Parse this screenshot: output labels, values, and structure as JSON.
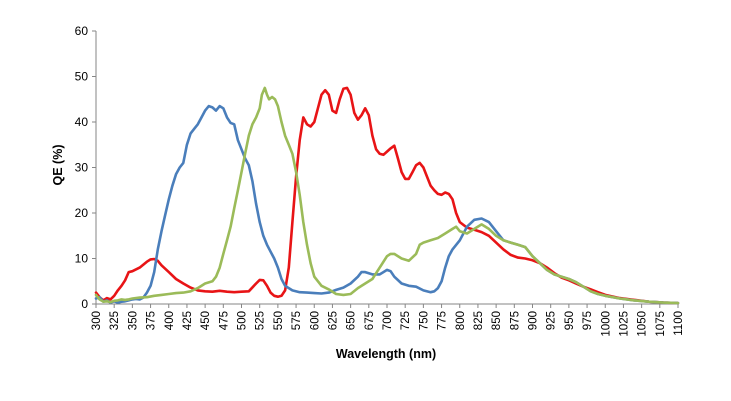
{
  "chart_data": {
    "type": "line",
    "title": "",
    "xlabel": "Wavelength (nm)",
    "ylabel": "QE (%)",
    "xlim": [
      300,
      1100
    ],
    "ylim": [
      0,
      60
    ],
    "grid": false,
    "legend": "none",
    "x_ticks": [
      300,
      325,
      350,
      375,
      400,
      425,
      450,
      475,
      500,
      525,
      550,
      575,
      600,
      625,
      650,
      675,
      700,
      725,
      750,
      775,
      800,
      825,
      850,
      875,
      900,
      925,
      950,
      975,
      1000,
      1025,
      1050,
      1075,
      1100
    ],
    "y_ticks": [
      0,
      10,
      20,
      30,
      40,
      50,
      60
    ],
    "series": [
      {
        "color": "#e81416",
        "points": [
          [
            300,
            2.5
          ],
          [
            305,
            1.5
          ],
          [
            310,
            0.8
          ],
          [
            315,
            1.3
          ],
          [
            320,
            1.0
          ],
          [
            325,
            1.8
          ],
          [
            330,
            3
          ],
          [
            335,
            4
          ],
          [
            340,
            5.2
          ],
          [
            345,
            7
          ],
          [
            350,
            7.2
          ],
          [
            360,
            8
          ],
          [
            370,
            9.3
          ],
          [
            375,
            9.8
          ],
          [
            380,
            9.9
          ],
          [
            385,
            9.5
          ],
          [
            390,
            8.5
          ],
          [
            400,
            7
          ],
          [
            410,
            5.5
          ],
          [
            420,
            4.5
          ],
          [
            430,
            3.6
          ],
          [
            440,
            3
          ],
          [
            450,
            2.8
          ],
          [
            460,
            2.7
          ],
          [
            470,
            2.9
          ],
          [
            480,
            2.7
          ],
          [
            490,
            2.6
          ],
          [
            500,
            2.7
          ],
          [
            510,
            2.8
          ],
          [
            520,
            4.5
          ],
          [
            525,
            5.3
          ],
          [
            530,
            5.2
          ],
          [
            535,
            4
          ],
          [
            540,
            2.5
          ],
          [
            545,
            1.8
          ],
          [
            550,
            1.6
          ],
          [
            555,
            1.8
          ],
          [
            560,
            3
          ],
          [
            565,
            8
          ],
          [
            570,
            18
          ],
          [
            575,
            28
          ],
          [
            580,
            36
          ],
          [
            585,
            41
          ],
          [
            590,
            39.5
          ],
          [
            595,
            39
          ],
          [
            600,
            40
          ],
          [
            605,
            43
          ],
          [
            610,
            46
          ],
          [
            615,
            47
          ],
          [
            620,
            46
          ],
          [
            625,
            42.5
          ],
          [
            630,
            42
          ],
          [
            635,
            45
          ],
          [
            640,
            47.3
          ],
          [
            645,
            47.5
          ],
          [
            650,
            46
          ],
          [
            655,
            42
          ],
          [
            660,
            40.5
          ],
          [
            665,
            41.5
          ],
          [
            670,
            43
          ],
          [
            675,
            41.5
          ],
          [
            680,
            37
          ],
          [
            685,
            34
          ],
          [
            690,
            33
          ],
          [
            695,
            32.8
          ],
          [
            700,
            33.5
          ],
          [
            705,
            34.2
          ],
          [
            710,
            34.8
          ],
          [
            715,
            32
          ],
          [
            720,
            29
          ],
          [
            725,
            27.5
          ],
          [
            730,
            27.5
          ],
          [
            735,
            29
          ],
          [
            740,
            30.5
          ],
          [
            745,
            31
          ],
          [
            750,
            30
          ],
          [
            755,
            28
          ],
          [
            760,
            26
          ],
          [
            765,
            25
          ],
          [
            770,
            24.2
          ],
          [
            775,
            24
          ],
          [
            780,
            24.5
          ],
          [
            785,
            24.2
          ],
          [
            790,
            23
          ],
          [
            795,
            20
          ],
          [
            800,
            18
          ],
          [
            810,
            16.8
          ],
          [
            820,
            16.3
          ],
          [
            830,
            15.8
          ],
          [
            840,
            15
          ],
          [
            850,
            13.5
          ],
          [
            860,
            12
          ],
          [
            870,
            10.8
          ],
          [
            880,
            10.2
          ],
          [
            890,
            10
          ],
          [
            900,
            9.6
          ],
          [
            910,
            9
          ],
          [
            920,
            8
          ],
          [
            930,
            6.8
          ],
          [
            940,
            5.8
          ],
          [
            950,
            5.2
          ],
          [
            960,
            4.5
          ],
          [
            970,
            3.8
          ],
          [
            980,
            3.2
          ],
          [
            990,
            2.6
          ],
          [
            1000,
            2
          ],
          [
            1020,
            1.3
          ],
          [
            1040,
            0.9
          ],
          [
            1060,
            0.5
          ],
          [
            1080,
            0.3
          ],
          [
            1100,
            0.2
          ]
        ]
      },
      {
        "color": "#4a7ebb",
        "points": [
          [
            300,
            1.2
          ],
          [
            305,
            1.5
          ],
          [
            310,
            0.5
          ],
          [
            315,
            0.8
          ],
          [
            320,
            0.3
          ],
          [
            325,
            0.6
          ],
          [
            330,
            0.3
          ],
          [
            335,
            0.5
          ],
          [
            340,
            0.6
          ],
          [
            345,
            0.8
          ],
          [
            350,
            1
          ],
          [
            355,
            1.1
          ],
          [
            360,
            1
          ],
          [
            365,
            1.4
          ],
          [
            370,
            2.5
          ],
          [
            375,
            4
          ],
          [
            380,
            7
          ],
          [
            385,
            12
          ],
          [
            390,
            16
          ],
          [
            395,
            19.5
          ],
          [
            400,
            23
          ],
          [
            405,
            26
          ],
          [
            410,
            28.5
          ],
          [
            415,
            30
          ],
          [
            420,
            31
          ],
          [
            425,
            35
          ],
          [
            430,
            37.5
          ],
          [
            435,
            38.5
          ],
          [
            440,
            39.5
          ],
          [
            445,
            41
          ],
          [
            450,
            42.5
          ],
          [
            455,
            43.5
          ],
          [
            460,
            43.2
          ],
          [
            465,
            42.5
          ],
          [
            470,
            43.5
          ],
          [
            475,
            43
          ],
          [
            480,
            41
          ],
          [
            485,
            39.8
          ],
          [
            490,
            39.5
          ],
          [
            495,
            36
          ],
          [
            500,
            34
          ],
          [
            505,
            32
          ],
          [
            510,
            30.5
          ],
          [
            515,
            27
          ],
          [
            520,
            22
          ],
          [
            525,
            18
          ],
          [
            530,
            15
          ],
          [
            535,
            13
          ],
          [
            540,
            11.5
          ],
          [
            545,
            10
          ],
          [
            550,
            8
          ],
          [
            555,
            5.5
          ],
          [
            560,
            4
          ],
          [
            570,
            3
          ],
          [
            580,
            2.6
          ],
          [
            590,
            2.5
          ],
          [
            600,
            2.4
          ],
          [
            610,
            2.3
          ],
          [
            620,
            2.5
          ],
          [
            630,
            3.1
          ],
          [
            640,
            3.6
          ],
          [
            650,
            4.5
          ],
          [
            660,
            6
          ],
          [
            665,
            7
          ],
          [
            670,
            7
          ],
          [
            680,
            6.5
          ],
          [
            690,
            6.5
          ],
          [
            700,
            7.5
          ],
          [
            705,
            7.2
          ],
          [
            710,
            6
          ],
          [
            720,
            4.5
          ],
          [
            730,
            4
          ],
          [
            740,
            3.8
          ],
          [
            750,
            3
          ],
          [
            760,
            2.6
          ],
          [
            765,
            2.8
          ],
          [
            770,
            3.5
          ],
          [
            775,
            5
          ],
          [
            780,
            8
          ],
          [
            785,
            10.5
          ],
          [
            790,
            12
          ],
          [
            800,
            14
          ],
          [
            810,
            17
          ],
          [
            820,
            18.5
          ],
          [
            830,
            18.8
          ],
          [
            840,
            18
          ],
          [
            850,
            16
          ],
          [
            860,
            14
          ],
          [
            870,
            13.5
          ],
          [
            880,
            13
          ],
          [
            890,
            12.5
          ],
          [
            900,
            10.5
          ],
          [
            910,
            9
          ],
          [
            920,
            7.5
          ],
          [
            930,
            6.5
          ],
          [
            940,
            6
          ],
          [
            950,
            5.5
          ],
          [
            960,
            4.8
          ],
          [
            970,
            3.8
          ],
          [
            980,
            2.8
          ],
          [
            990,
            2.2
          ],
          [
            1000,
            1.8
          ],
          [
            1020,
            1.2
          ],
          [
            1040,
            0.8
          ],
          [
            1060,
            0.5
          ],
          [
            1080,
            0.3
          ],
          [
            1100,
            0.2
          ]
        ]
      },
      {
        "color": "#9bbb59",
        "points": [
          [
            300,
            2
          ],
          [
            305,
            1
          ],
          [
            310,
            0.5
          ],
          [
            315,
            0.6
          ],
          [
            320,
            0.4
          ],
          [
            325,
            0.7
          ],
          [
            330,
            0.8
          ],
          [
            335,
            1
          ],
          [
            340,
            0.9
          ],
          [
            345,
            1
          ],
          [
            350,
            1.2
          ],
          [
            360,
            1.4
          ],
          [
            370,
            1.5
          ],
          [
            380,
            1.8
          ],
          [
            390,
            2
          ],
          [
            400,
            2.2
          ],
          [
            410,
            2.4
          ],
          [
            420,
            2.5
          ],
          [
            430,
            2.8
          ],
          [
            440,
            3.5
          ],
          [
            450,
            4.5
          ],
          [
            460,
            5
          ],
          [
            465,
            6
          ],
          [
            470,
            8
          ],
          [
            475,
            11
          ],
          [
            480,
            14
          ],
          [
            485,
            17
          ],
          [
            490,
            21
          ],
          [
            495,
            25
          ],
          [
            500,
            29
          ],
          [
            505,
            33
          ],
          [
            510,
            37
          ],
          [
            515,
            39.5
          ],
          [
            520,
            41
          ],
          [
            525,
            43
          ],
          [
            528,
            46
          ],
          [
            532,
            47.5
          ],
          [
            535,
            46
          ],
          [
            538,
            45
          ],
          [
            542,
            45.5
          ],
          [
            546,
            45
          ],
          [
            550,
            43.5
          ],
          [
            555,
            40
          ],
          [
            560,
            37
          ],
          [
            565,
            35
          ],
          [
            570,
            33
          ],
          [
            575,
            29
          ],
          [
            580,
            24
          ],
          [
            585,
            18
          ],
          [
            590,
            13
          ],
          [
            595,
            9
          ],
          [
            600,
            6
          ],
          [
            610,
            4
          ],
          [
            620,
            3.2
          ],
          [
            630,
            2.2
          ],
          [
            640,
            2
          ],
          [
            650,
            2.2
          ],
          [
            660,
            3.5
          ],
          [
            670,
            4.5
          ],
          [
            680,
            5.5
          ],
          [
            690,
            8
          ],
          [
            700,
            10.5
          ],
          [
            705,
            11
          ],
          [
            710,
            11
          ],
          [
            720,
            10
          ],
          [
            730,
            9.5
          ],
          [
            740,
            11
          ],
          [
            745,
            13
          ],
          [
            750,
            13.5
          ],
          [
            760,
            14
          ],
          [
            770,
            14.5
          ],
          [
            780,
            15.5
          ],
          [
            790,
            16.5
          ],
          [
            795,
            17
          ],
          [
            800,
            16
          ],
          [
            810,
            15.5
          ],
          [
            820,
            16.5
          ],
          [
            830,
            17.5
          ],
          [
            840,
            16.5
          ],
          [
            850,
            15
          ],
          [
            860,
            14
          ],
          [
            870,
            13.5
          ],
          [
            880,
            13
          ],
          [
            890,
            12.5
          ],
          [
            900,
            10.5
          ],
          [
            910,
            9
          ],
          [
            920,
            7.5
          ],
          [
            930,
            6.5
          ],
          [
            940,
            6
          ],
          [
            950,
            5.5
          ],
          [
            960,
            4.8
          ],
          [
            970,
            3.8
          ],
          [
            980,
            2.8
          ],
          [
            990,
            2.2
          ],
          [
            1000,
            1.8
          ],
          [
            1020,
            1.2
          ],
          [
            1040,
            0.8
          ],
          [
            1060,
            0.5
          ],
          [
            1080,
            0.3
          ],
          [
            1100,
            0.2
          ]
        ]
      }
    ]
  }
}
